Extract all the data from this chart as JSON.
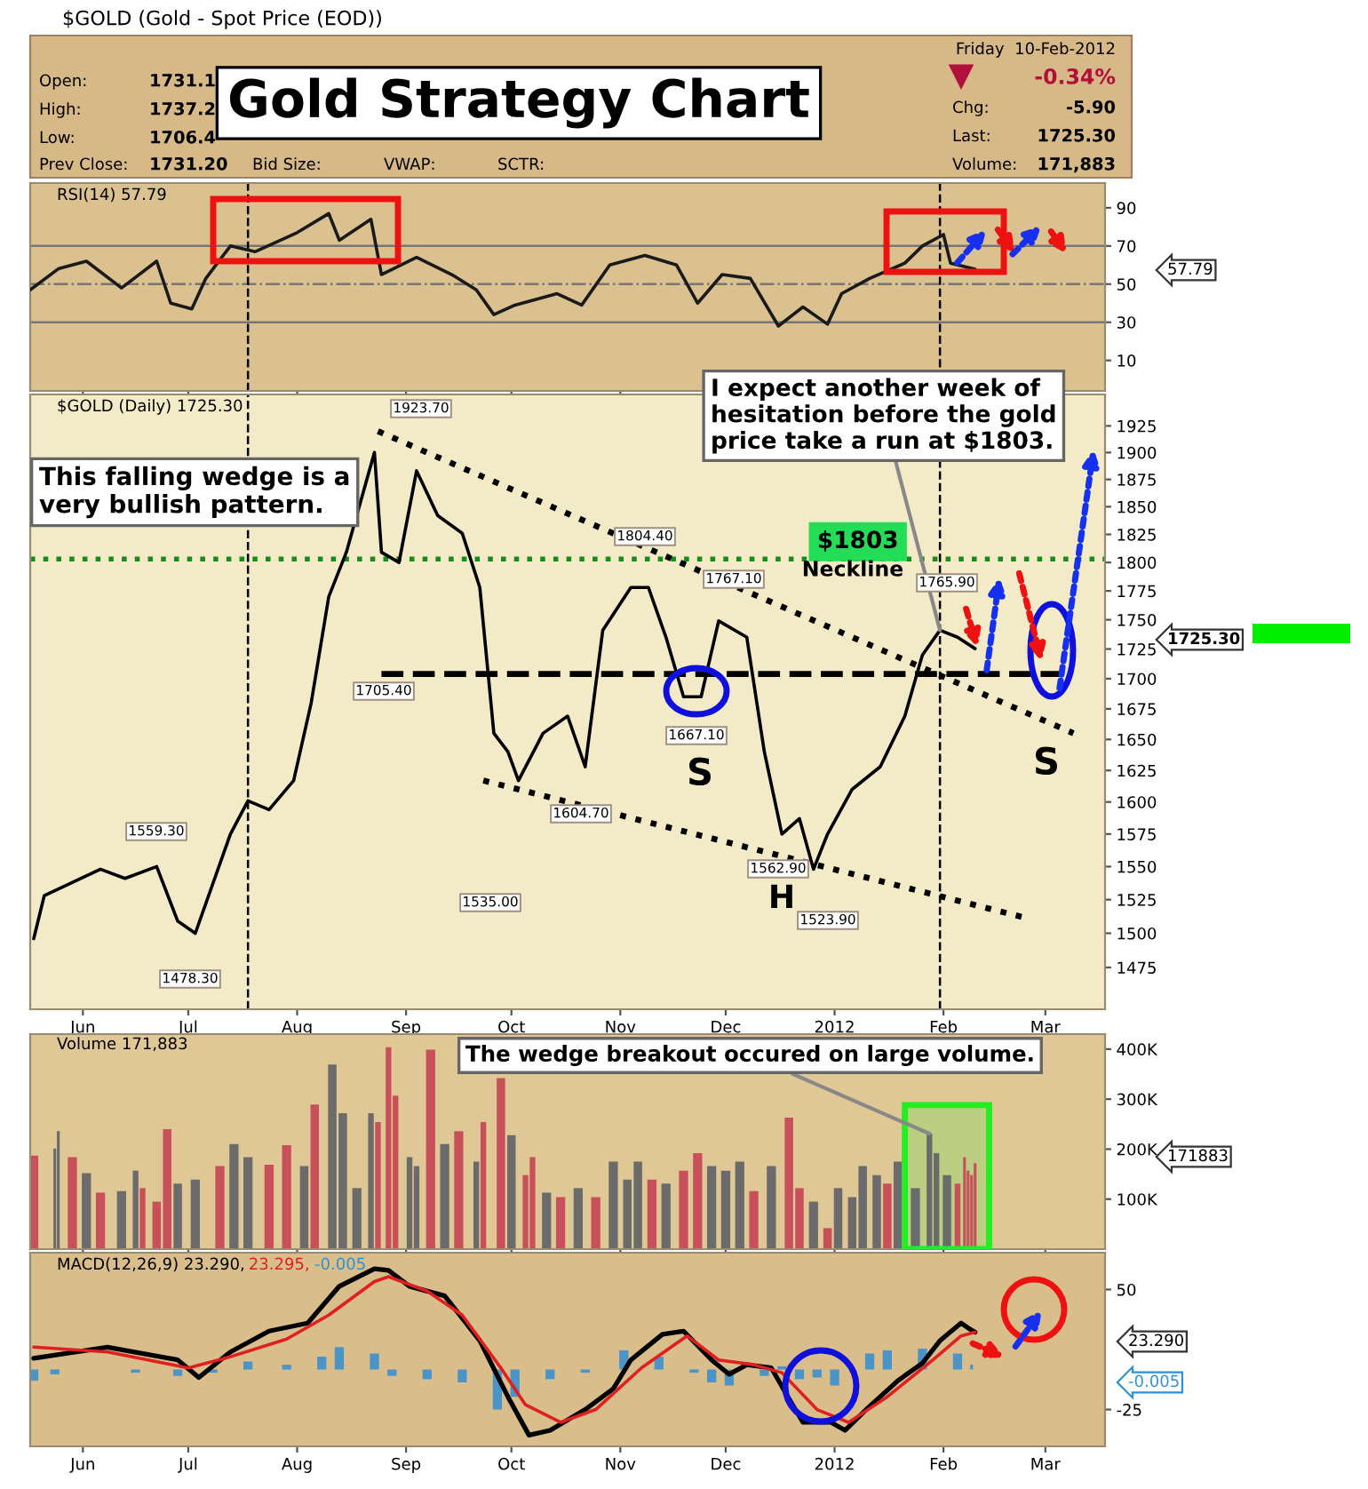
{
  "chart_data": [
    {
      "type": "line",
      "title": "Gold Strategy Chart",
      "xlim": [
        "2011-05-17",
        "2012-03-18"
      ],
      "ylim": [
        -6,
        103
      ],
      "yticks": [
        10,
        30,
        50,
        70,
        90
      ],
      "tick_labels": "y",
      "xticks": [
        {
          "value": "2011-06-01",
          "label": null
        },
        {
          "value": "2011-07-01",
          "label": null
        },
        {
          "value": "2011-08-01",
          "label": null
        },
        {
          "value": "2011-09-01",
          "label": null
        },
        {
          "value": "2011-10-01",
          "label": null
        },
        {
          "value": "2011-11-01",
          "label": null
        },
        {
          "value": "2011-12-01",
          "label": null
        },
        {
          "value": "2012-01-01",
          "label": null
        },
        {
          "value": "2012-02-01",
          "label": null
        },
        {
          "value": "2012-03-01",
          "label": null
        }
      ],
      "series": [
        {
          "color": "#1a1a1a",
          "x": [
            "2011-05-17",
            "2011-05-25",
            "2011-06-02",
            "2011-06-12",
            "2011-06-22",
            "2011-06-26",
            "2011-07-02",
            "2011-07-06",
            "2011-07-13",
            "2011-07-20",
            "2011-08-01",
            "2011-08-10",
            "2011-08-13",
            "2011-08-22",
            "2011-08-25",
            "2011-09-04",
            "2011-09-14",
            "2011-09-21",
            "2011-09-26",
            "2011-10-02",
            "2011-10-14",
            "2011-10-21",
            "2011-10-29",
            "2011-11-08",
            "2011-11-17",
            "2011-11-23",
            "2011-11-30",
            "2011-12-08",
            "2011-12-16",
            "2011-12-23",
            "2011-12-30",
            "2012-01-03",
            "2012-01-11",
            "2012-01-21",
            "2012-01-26",
            "2012-02-01",
            "2012-02-03",
            "2012-02-10"
          ],
          "values": [
            47,
            58,
            62,
            48,
            62,
            40,
            37,
            53,
            70,
            67,
            77,
            87,
            73,
            84,
            55,
            64,
            55,
            47,
            34,
            39,
            45,
            39,
            60,
            65,
            60,
            40,
            55,
            53,
            28,
            38,
            29,
            45,
            53,
            61,
            70,
            76,
            61,
            57.79
          ]
        }
      ],
      "ref_lines": [
        {
          "axis": "y",
          "value": 70,
          "color": "#777777",
          "line_style": "solid"
        },
        {
          "axis": "y",
          "value": 30,
          "color": "#777777",
          "line_style": "solid"
        },
        {
          "axis": "y",
          "value": 50,
          "color": "#777777",
          "line_style": "dashdot"
        },
        {
          "axis": "x",
          "value": "2011-07-18",
          "color": "#000000",
          "line_style": "dashed"
        },
        {
          "axis": "x",
          "value": "2012-01-31",
          "color": "#000000",
          "line_style": "dashed"
        }
      ],
      "annotations": [
        "$GOLD (Gold - Spot Price (EOD))",
        "Open:",
        "1731.1",
        "High:",
        "1737.2",
        "Low:",
        "1706.4",
        "Prev Close:",
        "1731.20",
        "Bid Size:",
        "VWAP:",
        "SCTR:",
        "Friday  10-Feb-2012",
        "-0.34%",
        "Chg:",
        "-5.90",
        "Last:",
        "1725.30",
        "Volume:",
        "171,883",
        "RSI(14) 57.79",
        "57.79"
      ]
    },
    {
      "type": "line",
      "log": true,
      "xlim": [
        "2011-05-17",
        "2012-03-18"
      ],
      "ylim": [
        1445,
        1955
      ],
      "yticks": [
        1475,
        1500,
        1525,
        1550,
        1575,
        1600,
        1625,
        1650,
        1675,
        1700,
        1725,
        1750,
        1775,
        1800,
        1825,
        1850,
        1875,
        1900,
        1925
      ],
      "xticks": [
        {
          "value": "2011-06-01",
          "label": "Jun"
        },
        {
          "value": "2011-07-01",
          "label": "Jul"
        },
        {
          "value": "2011-08-01",
          "label": "Aug"
        },
        {
          "value": "2011-09-01",
          "label": "Sep"
        },
        {
          "value": "2011-10-01",
          "label": "Oct"
        },
        {
          "value": "2011-11-01",
          "label": "Nov"
        },
        {
          "value": "2011-12-01",
          "label": "Dec"
        },
        {
          "value": "2012-01-01",
          "label": "2012"
        },
        {
          "value": "2012-02-01",
          "label": "Feb"
        },
        {
          "value": "2012-03-01",
          "label": "Mar"
        }
      ],
      "series": [
        {
          "color": "#000000",
          "x": [
            "2011-05-18",
            "2011-05-21",
            "2011-06-06",
            "2011-06-13",
            "2011-06-22",
            "2011-06-28",
            "2011-07-03",
            "2011-07-13",
            "2011-07-18",
            "2011-07-24",
            "2011-07-31",
            "2011-08-05",
            "2011-08-10",
            "2011-08-15",
            "2011-08-23",
            "2011-08-25",
            "2011-08-30",
            "2011-09-04",
            "2011-09-10",
            "2011-09-17",
            "2011-09-22",
            "2011-09-26",
            "2011-09-30",
            "2011-10-03",
            "2011-10-10",
            "2011-10-17",
            "2011-10-22",
            "2011-10-27",
            "2011-11-04",
            "2011-11-09",
            "2011-11-14",
            "2011-11-19",
            "2011-11-24",
            "2011-11-29",
            "2011-12-07",
            "2011-12-12",
            "2011-12-17",
            "2011-12-22",
            "2011-12-26",
            "2011-12-30",
            "2012-01-06",
            "2012-01-14",
            "2012-01-21",
            "2012-01-26",
            "2012-01-31",
            "2012-02-05",
            "2012-02-10"
          ],
          "values": [
            1496,
            1528,
            1548,
            1541,
            1550,
            1509,
            1500,
            1575,
            1601,
            1594,
            1617,
            1680,
            1770,
            1809,
            1900,
            1809,
            1800,
            1883,
            1842,
            1826,
            1778,
            1655,
            1640,
            1617,
            1655,
            1669,
            1628,
            1741,
            1778,
            1778,
            1735,
            1685,
            1685,
            1749,
            1735,
            1640,
            1575,
            1587,
            1548,
            1575,
            1610,
            1628,
            1669,
            1720,
            1741,
            1735,
            1725.3
          ]
        },
        {
          "color": "#000000",
          "line_style": "dotted",
          "x": [
            "2011-08-24",
            "2012-03-09"
          ],
          "values": [
            1920,
            1655
          ]
        },
        {
          "color": "#000000",
          "line_style": "dotted",
          "x": [
            "2011-09-23",
            "2012-02-25"
          ],
          "values": [
            1617,
            1511
          ]
        },
        {
          "color": "#000000",
          "line_style": "dashed",
          "x": [
            "2011-08-25",
            "2012-03-06"
          ],
          "values": [
            1704,
            1704
          ]
        }
      ],
      "ref_lines": [
        {
          "axis": "y",
          "value": 1803,
          "label": "$1803",
          "color": "#1a8a1a",
          "line_style": "dotted"
        },
        {
          "axis": "x",
          "value": "2011-07-18",
          "color": "#000000",
          "line_style": "dashed"
        },
        {
          "axis": "x",
          "value": "2012-01-31",
          "color": "#000000",
          "line_style": "dashed"
        }
      ],
      "annotations": [
        "$GOLD (Daily) 1725.30",
        "This falling wedge is a\nvery bullish pattern.",
        {
          "text": "I expect another week of\nhesitation before the gold\nprice take a run at $1803.",
          "x": "2012-01-31",
          "y": 1741
        },
        "1923.70",
        "1804.40",
        "1767.10",
        "1765.90",
        "1705.40",
        "1667.10",
        "1604.70",
        "1559.30",
        "1535.00",
        "1562.90",
        "1523.90",
        "1478.30",
        "S",
        "S",
        "H",
        "Neckline",
        "1725.30"
      ]
    },
    {
      "type": "bar",
      "xlim": [
        "2011-05-17",
        "2012-03-18"
      ],
      "ylim": [
        0,
        430000
      ],
      "yticks": [
        {
          "value": 100000,
          "label": "100K"
        },
        {
          "value": 200000,
          "label": "200K"
        },
        {
          "value": 300000,
          "label": "300K"
        },
        {
          "value": 400000,
          "label": "400K"
        }
      ],
      "tick_labels": "y",
      "xticks": [
        {
          "value": "2011-06-01",
          "label": null
        },
        {
          "value": "2011-07-01",
          "label": null
        },
        {
          "value": "2011-08-01",
          "label": null
        },
        {
          "value": "2011-09-01",
          "label": null
        },
        {
          "value": "2011-10-01",
          "label": null
        },
        {
          "value": "2011-11-01",
          "label": null
        },
        {
          "value": "2011-12-01",
          "label": null
        },
        {
          "value": "2012-01-01",
          "label": null
        },
        {
          "value": "2012-02-01",
          "label": null
        },
        {
          "value": "2012-03-01",
          "label": null
        }
      ],
      "x": [
        "2011-05-18",
        "2011-05-24",
        "2011-05-25",
        "2011-05-29",
        "2011-06-02",
        "2011-06-06",
        "2011-06-12",
        "2011-06-16",
        "2011-06-18",
        "2011-06-22",
        "2011-06-25",
        "2011-06-28",
        "2011-07-03",
        "2011-07-10",
        "2011-07-14",
        "2011-07-18",
        "2011-07-24",
        "2011-07-29",
        "2011-08-03",
        "2011-08-06",
        "2011-08-11",
        "2011-08-14",
        "2011-08-18",
        "2011-08-22",
        "2011-08-24",
        "2011-08-27",
        "2011-08-29",
        "2011-09-02",
        "2011-09-04",
        "2011-09-08",
        "2011-09-12",
        "2011-09-16",
        "2011-09-21",
        "2011-09-23",
        "2011-09-28",
        "2011-10-01",
        "2011-10-05",
        "2011-10-07",
        "2011-10-11",
        "2011-10-15",
        "2011-10-20",
        "2011-10-25",
        "2011-10-30",
        "2011-11-03",
        "2011-11-06",
        "2011-11-10",
        "2011-11-14",
        "2011-11-19",
        "2011-11-23",
        "2011-11-27",
        "2011-12-01",
        "2011-12-05",
        "2011-12-09",
        "2011-12-14",
        "2011-12-19",
        "2011-12-22",
        "2011-12-26",
        "2011-12-30",
        "2012-01-02",
        "2012-01-06",
        "2012-01-09",
        "2012-01-13",
        "2012-01-16",
        "2012-01-19",
        "2012-01-24",
        "2012-01-28",
        "2012-01-30",
        "2012-02-02",
        "2012-02-05",
        "2012-02-07",
        "2012-02-08",
        "2012-02-09",
        "2012-02-10"
      ],
      "values": [
        187000,
        201000,
        236000,
        184000,
        152000,
        113000,
        116000,
        157000,
        122000,
        95000,
        240000,
        131000,
        139000,
        166000,
        210000,
        184000,
        169000,
        208000,
        166000,
        289000,
        369000,
        272000,
        122000,
        272000,
        254000,
        404000,
        307000,
        184000,
        166000,
        399000,
        210000,
        236000,
        175000,
        254000,
        342000,
        228000,
        148000,
        184000,
        113000,
        104000,
        122000,
        104000,
        175000,
        139000,
        175000,
        139000,
        131000,
        157000,
        192000,
        166000,
        157000,
        175000,
        116000,
        166000,
        263000,
        122000,
        95000,
        42000,
        122000,
        104000,
        166000,
        148000,
        131000,
        175000,
        122000,
        231000,
        192000,
        148000,
        131000,
        184000,
        157000,
        148000,
        171883
      ],
      "colors": [
        "#c8505a",
        "#6b6b6b",
        "#6b6b6b",
        "#c8505a",
        "#6b6b6b",
        "#c8505a",
        "#6b6b6b",
        "#6b6b6b",
        "#c8505a",
        "#c8505a",
        "#c8505a",
        "#6b6b6b",
        "#6b6b6b",
        "#c8505a",
        "#6b6b6b",
        "#6b6b6b",
        "#c8505a",
        "#c8505a",
        "#6b6b6b",
        "#c8505a",
        "#6b6b6b",
        "#6b6b6b",
        "#6b6b6b",
        "#6b6b6b",
        "#c8505a",
        "#c8505a",
        "#c8505a",
        "#6b6b6b",
        "#6b6b6b",
        "#c8505a",
        "#6b6b6b",
        "#c8505a",
        "#6b6b6b",
        "#c8505a",
        "#c8505a",
        "#6b6b6b",
        "#c8505a",
        "#c8505a",
        "#6b6b6b",
        "#c8505a",
        "#6b6b6b",
        "#c8505a",
        "#6b6b6b",
        "#6b6b6b",
        "#6b6b6b",
        "#c8505a",
        "#6b6b6b",
        "#c8505a",
        "#c8505a",
        "#6b6b6b",
        "#6b6b6b",
        "#6b6b6b",
        "#c8505a",
        "#6b6b6b",
        "#c8505a",
        "#c8505a",
        "#6b6b6b",
        "#c8505a",
        "#6b6b6b",
        "#6b6b6b",
        "#6b6b6b",
        "#6b6b6b",
        "#c8505a",
        "#6b6b6b",
        "#6b6b6b",
        "#6b6b6b",
        "#6b6b6b",
        "#6b6b6b",
        "#c8505a",
        "#c8505a",
        "#c8505a",
        "#c8505a",
        "#c8505a"
      ],
      "bands": [
        {
          "axis": "x",
          "from": "2012-01-21",
          "to": "2012-02-14",
          "color": "#22ee22"
        }
      ],
      "annotations": [
        "Volume 171,883",
        {
          "text": "The wedge breakout occured on large volume.",
          "x": "2012-01-28",
          "y": 231000
        },
        "171883"
      ]
    },
    {
      "type": "line",
      "xlim": [
        "2011-05-17",
        "2012-03-18"
      ],
      "ylim": [
        -48,
        73
      ],
      "yticks": [
        -25,
        50
      ],
      "xticks": [
        {
          "value": "2011-06-01",
          "label": "Jun"
        },
        {
          "value": "2011-07-01",
          "label": "Jul"
        },
        {
          "value": "2011-08-01",
          "label": "Aug"
        },
        {
          "value": "2011-09-01",
          "label": "Sep"
        },
        {
          "value": "2011-10-01",
          "label": "Oct"
        },
        {
          "value": "2011-11-01",
          "label": "Nov"
        },
        {
          "value": "2011-12-01",
          "label": "Dec"
        },
        {
          "value": "2012-01-01",
          "label": "2012"
        },
        {
          "value": "2012-02-01",
          "label": "Feb"
        },
        {
          "value": "2012-03-01",
          "label": "Mar"
        }
      ],
      "series": [
        {
          "type": "bar",
          "color": "#4a94c8",
          "x": [
            "2011-05-18",
            "2011-05-24",
            "2011-06-03",
            "2011-06-16",
            "2011-06-28",
            "2011-07-08",
            "2011-07-18",
            "2011-07-29",
            "2011-08-08",
            "2011-08-13",
            "2011-08-23",
            "2011-08-28",
            "2011-09-07",
            "2011-09-17",
            "2011-09-27",
            "2011-10-02",
            "2011-10-12",
            "2011-10-22",
            "2011-11-02",
            "2011-11-12",
            "2011-11-22",
            "2011-11-27",
            "2011-12-02",
            "2011-12-12",
            "2011-12-17",
            "2011-12-22",
            "2011-12-27",
            "2012-01-01",
            "2012-01-06",
            "2012-01-11",
            "2012-01-16",
            "2012-01-26",
            "2012-02-05",
            "2012-02-09",
            "2012-02-10"
          ],
          "values": [
            -7,
            -3,
            0,
            -2,
            -4,
            -2,
            5,
            3,
            8,
            14,
            10,
            -4,
            -6,
            -8,
            -25,
            -17,
            -6,
            -2,
            12,
            8,
            -2,
            -8,
            -10,
            -4,
            2,
            -6,
            -5,
            -10,
            0,
            10,
            12,
            13,
            10,
            3,
            -0.005
          ]
        },
        {
          "color": "#000000",
          "x": [
            "2011-05-18",
            "2011-06-08",
            "2011-06-28",
            "2011-07-04",
            "2011-07-13",
            "2011-07-24",
            "2011-08-04",
            "2011-08-13",
            "2011-08-23",
            "2011-08-27",
            "2011-09-02",
            "2011-09-12",
            "2011-09-22",
            "2011-09-30",
            "2011-10-06",
            "2011-10-12",
            "2011-10-22",
            "2011-10-30",
            "2011-11-04",
            "2011-11-13",
            "2011-11-19",
            "2011-11-27",
            "2011-12-02",
            "2011-12-07",
            "2011-12-14",
            "2011-12-20",
            "2011-12-23",
            "2011-12-31",
            "2012-01-04",
            "2012-01-10",
            "2012-01-19",
            "2012-01-26",
            "2012-01-31",
            "2012-02-06",
            "2012-02-08",
            "2012-02-10"
          ],
          "values": [
            7,
            14,
            6,
            -5,
            11,
            24,
            29,
            52,
            63,
            62,
            52,
            46,
            18,
            -17,
            -41,
            -38,
            -25,
            -12,
            6,
            22,
            24,
            6,
            -3,
            3,
            1,
            -22,
            -33,
            -33,
            -38,
            -25,
            -7,
            4,
            18,
            29,
            26,
            23.29
          ]
        },
        {
          "color": "#e02020",
          "x": [
            "2011-05-18",
            "2011-06-08",
            "2011-07-01",
            "2011-07-13",
            "2011-07-29",
            "2011-08-10",
            "2011-08-23",
            "2011-08-27",
            "2011-09-07",
            "2011-09-17",
            "2011-09-28",
            "2011-10-05",
            "2011-10-15",
            "2011-10-25",
            "2011-11-07",
            "2011-11-20",
            "2011-11-29",
            "2011-12-09",
            "2011-12-17",
            "2011-12-27",
            "2012-01-05",
            "2012-01-16",
            "2012-01-29",
            "2012-02-06",
            "2012-02-10"
          ],
          "values": [
            14,
            11,
            1,
            8,
            19,
            34,
            55,
            58,
            49,
            34,
            1,
            -22,
            -33,
            -25,
            1,
            21,
            6,
            3,
            -2,
            -25,
            -33,
            -17,
            6,
            21,
            23.295
          ]
        }
      ],
      "annotations": [
        "MACD(12,26,9) 23.290,",
        "23.295,",
        "-0.005",
        "23.290",
        "-0.005"
      ]
    }
  ]
}
